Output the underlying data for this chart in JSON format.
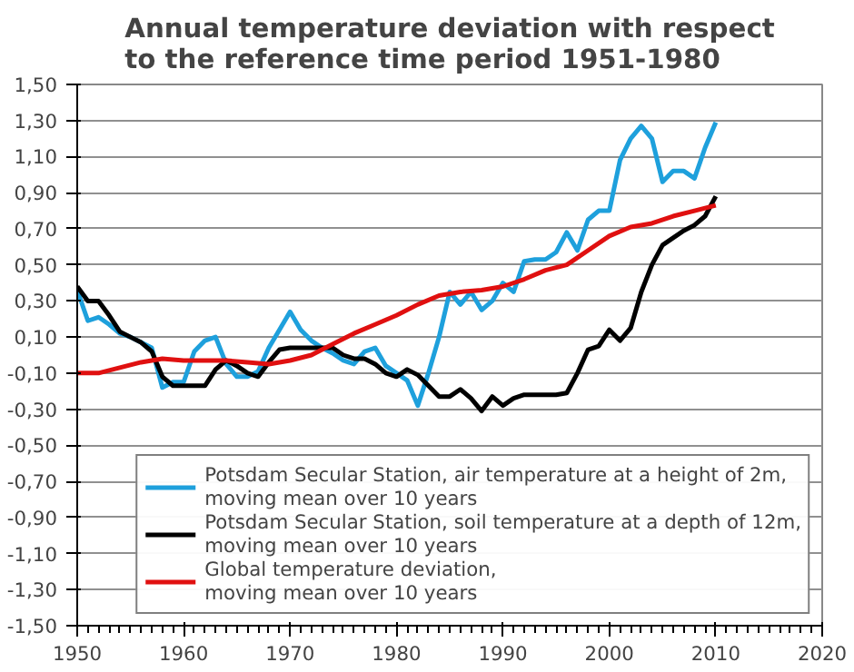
{
  "chart_data": {
    "type": "line",
    "title": "Annual temperature deviation with respect\nto the reference time period 1951-1980",
    "series": [
      {
        "name": "Potsdam Secular Station, air temperature at a height of 2m,\nmoving mean over 10 years",
        "color": "#1ea0dc",
        "x": [
          1950,
          1951,
          1952,
          1953,
          1954,
          1955,
          1956,
          1957,
          1958,
          1959,
          1960,
          1961,
          1962,
          1963,
          1964,
          1965,
          1966,
          1967,
          1968,
          1969,
          1970,
          1971,
          1972,
          1973,
          1974,
          1975,
          1976,
          1977,
          1978,
          1979,
          1980,
          1981,
          1982,
          1983,
          1984,
          1985,
          1986,
          1987,
          1988,
          1989,
          1990,
          1991,
          1992,
          1993,
          1994,
          1995,
          1996,
          1997,
          1998,
          1999,
          2000,
          2001,
          2002,
          2003,
          2004,
          2005,
          2006,
          2007,
          2008,
          2009,
          2010
        ],
        "values": [
          0.36,
          0.19,
          0.21,
          0.17,
          0.12,
          0.1,
          0.07,
          0.04,
          -0.18,
          -0.15,
          -0.15,
          0.02,
          0.08,
          0.1,
          -0.05,
          -0.12,
          -0.12,
          -0.09,
          0.04,
          0.14,
          0.24,
          0.14,
          0.08,
          0.04,
          0.01,
          -0.03,
          -0.05,
          0.02,
          0.04,
          -0.06,
          -0.1,
          -0.14,
          -0.28,
          -0.1,
          0.1,
          0.35,
          0.28,
          0.35,
          0.25,
          0.3,
          0.4,
          0.35,
          0.52,
          0.53,
          0.53,
          0.57,
          0.68,
          0.58,
          0.75,
          0.8,
          0.8,
          1.08,
          1.2,
          1.27,
          1.2,
          0.96,
          1.02,
          1.02,
          0.98,
          1.15,
          1.29
        ]
      },
      {
        "name": "Potsdam Secular Station, soil temperature at a depth of 12m,\nmoving mean over 10 years",
        "color": "#000000",
        "x": [
          1950,
          1951,
          1952,
          1953,
          1954,
          1955,
          1956,
          1957,
          1958,
          1959,
          1960,
          1961,
          1962,
          1963,
          1964,
          1965,
          1966,
          1967,
          1968,
          1969,
          1970,
          1971,
          1972,
          1973,
          1974,
          1975,
          1976,
          1977,
          1978,
          1979,
          1980,
          1981,
          1982,
          1983,
          1984,
          1985,
          1986,
          1987,
          1988,
          1989,
          1990,
          1991,
          1992,
          1993,
          1994,
          1995,
          1996,
          1997,
          1998,
          1999,
          2000,
          2001,
          2002,
          2003,
          2004,
          2005,
          2006,
          2007,
          2008,
          2009,
          2010
        ],
        "values": [
          0.38,
          0.3,
          0.3,
          0.22,
          0.13,
          0.1,
          0.07,
          0.02,
          -0.12,
          -0.17,
          -0.17,
          -0.17,
          -0.17,
          -0.08,
          -0.03,
          -0.06,
          -0.1,
          -0.12,
          -0.04,
          0.03,
          0.04,
          0.04,
          0.04,
          0.04,
          0.04,
          0.0,
          -0.02,
          -0.02,
          -0.05,
          -0.1,
          -0.12,
          -0.08,
          -0.11,
          -0.17,
          -0.23,
          -0.23,
          -0.19,
          -0.24,
          -0.31,
          -0.23,
          -0.28,
          -0.24,
          -0.22,
          -0.22,
          -0.22,
          -0.22,
          -0.21,
          -0.1,
          0.03,
          0.05,
          0.14,
          0.08,
          0.15,
          0.35,
          0.5,
          0.61,
          0.65,
          0.69,
          0.72,
          0.77,
          0.88
        ]
      },
      {
        "name": "Global temperature deviation,\nmoving mean over 10 years",
        "color": "#e01010",
        "x": [
          1950,
          1952,
          1954,
          1956,
          1958,
          1960,
          1962,
          1964,
          1966,
          1968,
          1970,
          1972,
          1974,
          1976,
          1978,
          1980,
          1982,
          1984,
          1986,
          1988,
          1990,
          1992,
          1994,
          1996,
          1998,
          2000,
          2002,
          2004,
          2006,
          2008,
          2010
        ],
        "values": [
          -0.1,
          -0.1,
          -0.07,
          -0.04,
          -0.02,
          -0.03,
          -0.03,
          -0.03,
          -0.04,
          -0.05,
          -0.03,
          0.0,
          0.06,
          0.12,
          0.17,
          0.22,
          0.28,
          0.33,
          0.35,
          0.36,
          0.38,
          0.42,
          0.47,
          0.5,
          0.58,
          0.66,
          0.71,
          0.73,
          0.77,
          0.8,
          0.83
        ]
      }
    ],
    "xlim": [
      1950,
      2020
    ],
    "xticks": [
      1950,
      1960,
      1970,
      1980,
      1990,
      2000,
      2010,
      2020
    ],
    "ylim": [
      -1.5,
      1.5
    ],
    "yticks": [
      {
        "value": -1.5,
        "label": "-1,50"
      },
      {
        "value": -1.3,
        "label": "-1,30"
      },
      {
        "value": -1.1,
        "label": "-1,10"
      },
      {
        "value": -0.9,
        "label": "-0,90"
      },
      {
        "value": -0.7,
        "label": "-0,70"
      },
      {
        "value": -0.5,
        "label": "-0,50"
      },
      {
        "value": -0.3,
        "label": "-0,30"
      },
      {
        "value": -0.1,
        "label": "-0,10"
      },
      {
        "value": 0.1,
        "label": "0,10"
      },
      {
        "value": 0.3,
        "label": "0,30"
      },
      {
        "value": 0.5,
        "label": "0,50"
      },
      {
        "value": 0.7,
        "label": "0,70"
      },
      {
        "value": 0.9,
        "label": "0,90"
      },
      {
        "value": 1.1,
        "label": "1,10"
      },
      {
        "value": 1.3,
        "label": "1,30"
      },
      {
        "value": 1.5,
        "label": "1,50"
      }
    ],
    "grid": "y",
    "legend": "bottom right",
    "marker": "none",
    "line_style": "solid"
  }
}
